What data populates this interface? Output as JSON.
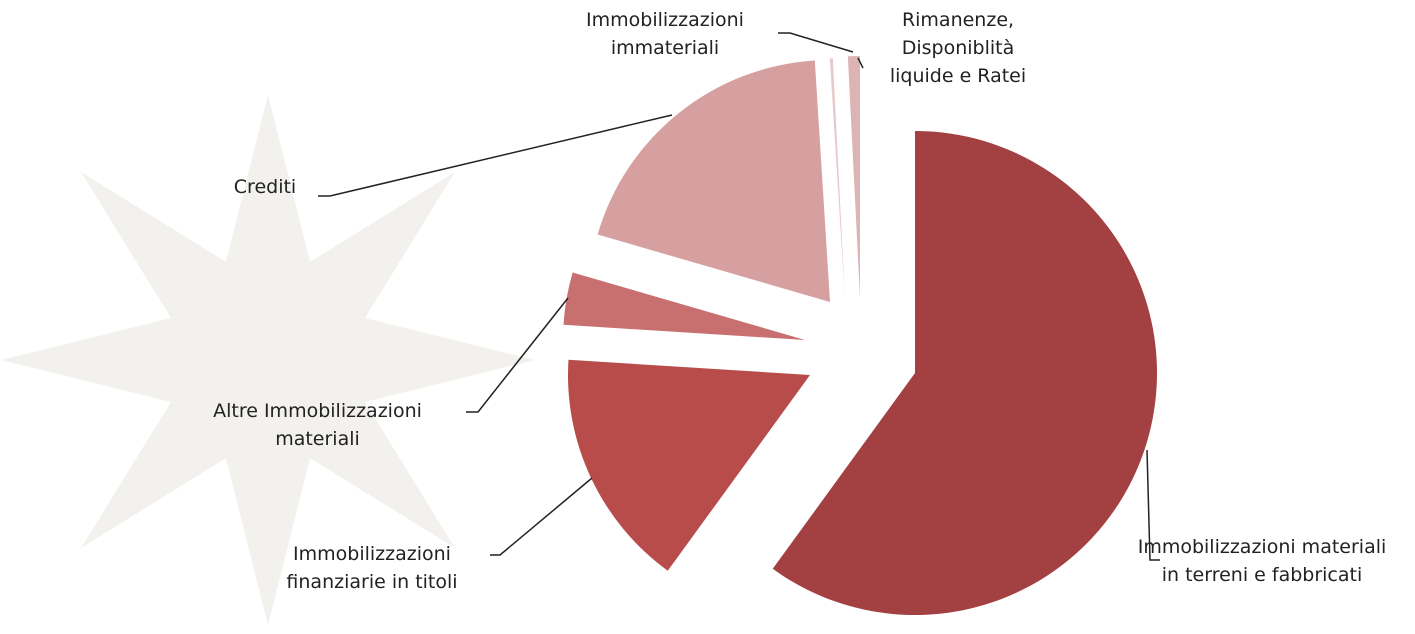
{
  "chart_data": {
    "type": "pie",
    "categories": [
      "Immobilizzazioni materiali in terreni e fabbricati",
      "Immobilizzazioni finanziarie in titoli",
      "Altre Immobilizzazioni materiali",
      "Crediti",
      "Immobilizzazioni immateriali",
      "Rimanenze, Disponiblità liquide e Ratei"
    ],
    "values": [
      60,
      16,
      3.5,
      19.5,
      0.2,
      0.8
    ],
    "colors": [
      "#a34042",
      "#b84c4a",
      "#c87070",
      "#d6a0a0",
      "#e8caca",
      "#dcb4b4"
    ]
  }
}
